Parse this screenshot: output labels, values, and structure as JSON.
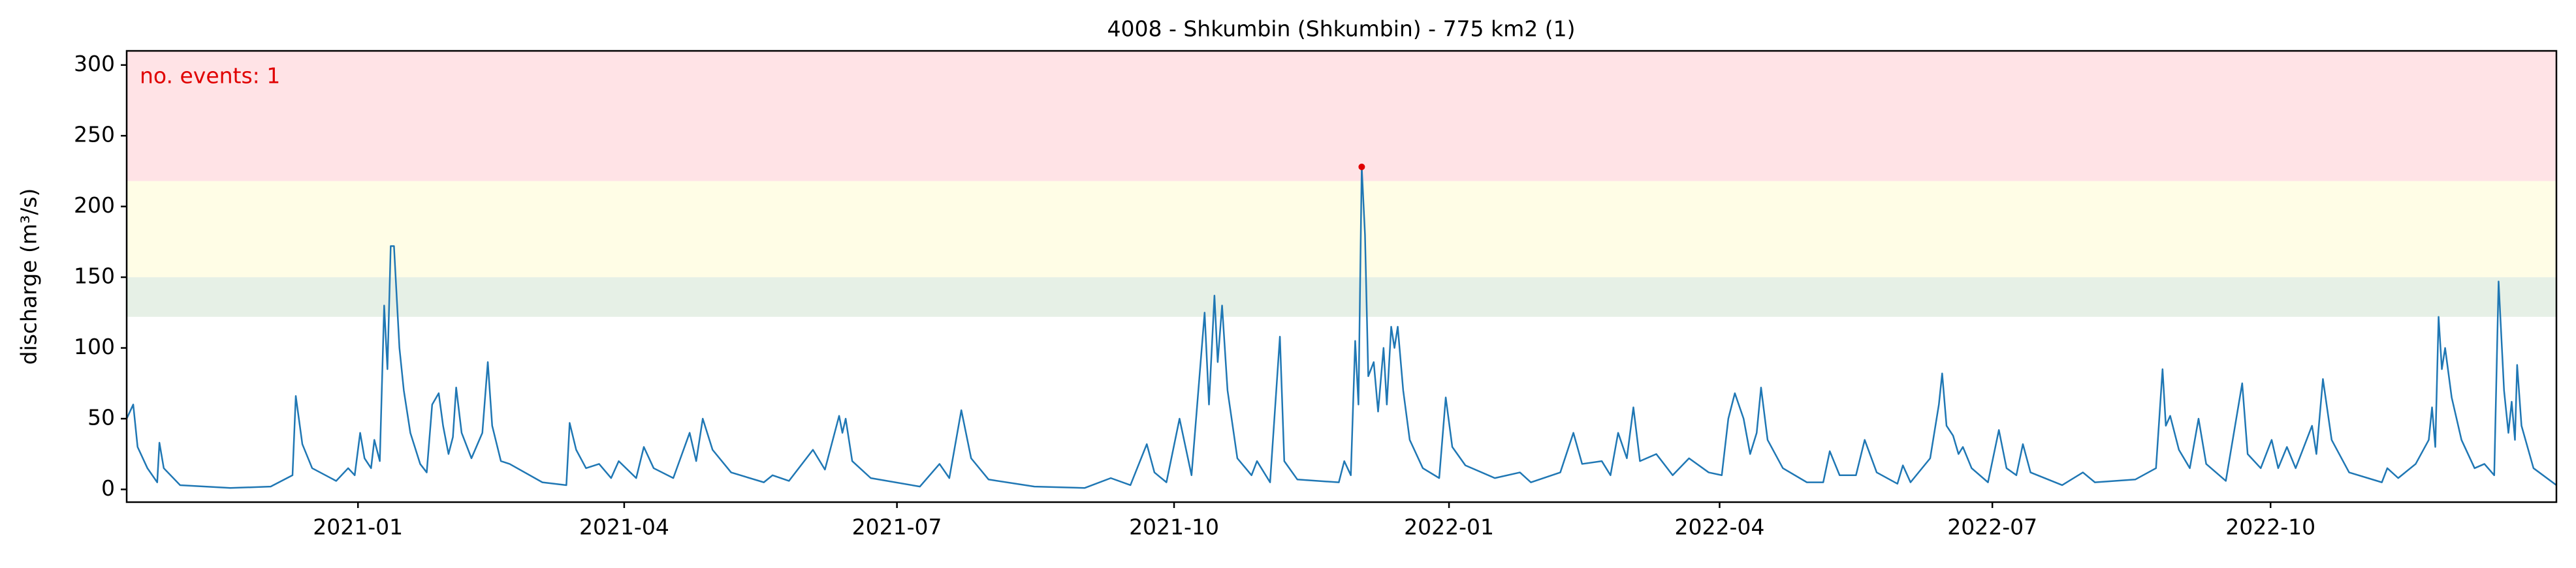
{
  "chart_data": {
    "type": "line",
    "title": "4008 - Shkumbin (Shkumbin) - 775 km2 (1)",
    "y_label": "discharge (m³/s)",
    "annotation": "no. events: 1",
    "annotation_color": "#e00000",
    "color": "#1f77b4",
    "xlim": [
      2020.788,
      2023.015
    ],
    "ylim": [
      -9,
      310
    ],
    "yticks": [
      0,
      50,
      100,
      150,
      200,
      250,
      300
    ],
    "xticks": [
      {
        "value": 2021.0,
        "label": "2021-01"
      },
      {
        "value": 2021.244,
        "label": "2021-04"
      },
      {
        "value": 2021.494,
        "label": "2021-07"
      },
      {
        "value": 2021.748,
        "label": "2021-10"
      },
      {
        "value": 2022.0,
        "label": "2022-01"
      },
      {
        "value": 2022.248,
        "label": "2022-04"
      },
      {
        "value": 2022.498,
        "label": "2022-07"
      },
      {
        "value": 2022.753,
        "label": "2022-10"
      }
    ],
    "bands": [
      {
        "from": 122,
        "color": "#e6f0e6"
      },
      {
        "from": 150,
        "color": "#fffde6"
      },
      {
        "from": 218,
        "color": "#ffe3e6"
      }
    ],
    "events": {
      "x": [
        2021.92
      ],
      "values": [
        228
      ],
      "color": "#e00000"
    },
    "x": [
      2020.788,
      2020.794,
      2020.798,
      2020.807,
      2020.816,
      2020.818,
      2020.822,
      2020.837,
      2020.883,
      2020.92,
      2020.94,
      2020.943,
      2020.949,
      2020.958,
      2020.98,
      2020.991,
      2020.997,
      2021.002,
      2021.006,
      2021.012,
      2021.015,
      2021.02,
      2021.024,
      2021.027,
      2021.03,
      2021.033,
      2021.038,
      2021.042,
      2021.048,
      2021.057,
      2021.063,
      2021.068,
      2021.074,
      2021.078,
      2021.083,
      2021.087,
      2021.09,
      2021.095,
      2021.104,
      2021.114,
      2021.119,
      2021.123,
      2021.131,
      2021.139,
      2021.169,
      2021.191,
      2021.194,
      2021.2,
      2021.209,
      2021.221,
      2021.232,
      2021.239,
      2021.255,
      2021.262,
      2021.271,
      2021.289,
      2021.304,
      2021.31,
      2021.316,
      2021.325,
      2021.342,
      2021.372,
      2021.38,
      2021.395,
      2021.417,
      2021.428,
      2021.441,
      2021.444,
      2021.447,
      2021.453,
      2021.47,
      2021.515,
      2021.533,
      2021.542,
      2021.553,
      2021.562,
      2021.578,
      2021.62,
      2021.666,
      2021.69,
      2021.708,
      2021.723,
      2021.73,
      2021.741,
      2021.753,
      2021.764,
      2021.776,
      2021.78,
      2021.785,
      2021.788,
      2021.792,
      2021.797,
      2021.806,
      2021.819,
      2021.824,
      2021.836,
      2021.845,
      2021.849,
      2021.861,
      2021.899,
      2021.904,
      2021.91,
      2021.914,
      2021.917,
      2021.92,
      2021.923,
      2021.926,
      2021.931,
      2021.935,
      2021.94,
      2021.943,
      2021.947,
      2021.95,
      2021.953,
      2021.958,
      2021.964,
      2021.976,
      2021.991,
      2021.997,
      2022.003,
      2022.015,
      2022.042,
      2022.065,
      2022.075,
      2022.102,
      2022.114,
      2022.122,
      2022.14,
      2022.148,
      2022.155,
      2022.163,
      2022.169,
      2022.175,
      2022.19,
      2022.205,
      2022.22,
      2022.238,
      2022.25,
      2022.256,
      2022.262,
      2022.27,
      2022.276,
      2022.282,
      2022.286,
      2022.292,
      2022.306,
      2022.328,
      2022.343,
      2022.349,
      2022.358,
      2022.373,
      2022.381,
      2022.392,
      2022.411,
      2022.416,
      2022.423,
      2022.441,
      2022.449,
      2022.452,
      2022.456,
      2022.462,
      2022.467,
      2022.471,
      2022.479,
      2022.494,
      2022.504,
      2022.511,
      2022.52,
      2022.526,
      2022.533,
      2022.562,
      2022.581,
      2022.592,
      2022.629,
      2022.648,
      2022.654,
      2022.657,
      2022.661,
      2022.669,
      2022.679,
      2022.687,
      2022.694,
      2022.712,
      2022.727,
      2022.732,
      2022.744,
      2022.754,
      2022.76,
      2022.768,
      2022.776,
      2022.791,
      2022.795,
      2022.801,
      2022.809,
      2022.825,
      2022.855,
      2022.86,
      2022.87,
      2022.886,
      2022.898,
      2022.901,
      2022.904,
      2022.907,
      2022.91,
      2022.913,
      2022.919,
      2022.928,
      2022.94,
      2022.949,
      2022.958,
      2022.962,
      2022.967,
      2022.971,
      2022.974,
      2022.977,
      2022.979,
      2022.983,
      2022.994,
      2023.015
    ],
    "values": [
      50,
      60,
      30,
      15,
      5,
      33,
      15,
      3,
      1,
      2,
      10,
      66,
      32,
      15,
      6,
      15,
      10,
      40,
      22,
      15,
      35,
      20,
      130,
      85,
      172,
      172,
      100,
      70,
      40,
      18,
      12,
      60,
      68,
      45,
      25,
      37,
      72,
      40,
      22,
      40,
      90,
      45,
      20,
      18,
      5,
      3,
      47,
      28,
      15,
      18,
      8,
      20,
      8,
      30,
      15,
      8,
      40,
      20,
      50,
      28,
      12,
      5,
      10,
      6,
      28,
      14,
      52,
      40,
      50,
      20,
      8,
      2,
      18,
      8,
      56,
      22,
      7,
      2,
      1,
      8,
      3,
      32,
      12,
      5,
      50,
      10,
      125,
      60,
      137,
      90,
      130,
      70,
      22,
      10,
      20,
      5,
      108,
      20,
      7,
      5,
      20,
      10,
      105,
      60,
      228,
      180,
      80,
      90,
      55,
      100,
      60,
      115,
      100,
      115,
      70,
      35,
      15,
      8,
      65,
      30,
      17,
      8,
      12,
      5,
      12,
      40,
      18,
      20,
      10,
      40,
      22,
      58,
      20,
      25,
      10,
      22,
      12,
      10,
      50,
      68,
      50,
      25,
      40,
      72,
      35,
      15,
      5,
      5,
      27,
      10,
      10,
      35,
      12,
      4,
      17,
      5,
      22,
      60,
      82,
      45,
      38,
      25,
      30,
      15,
      5,
      42,
      15,
      10,
      32,
      12,
      3,
      12,
      5,
      7,
      15,
      85,
      45,
      52,
      28,
      15,
      50,
      18,
      6,
      75,
      25,
      15,
      35,
      15,
      30,
      15,
      45,
      25,
      78,
      35,
      12,
      5,
      15,
      8,
      18,
      35,
      58,
      30,
      122,
      85,
      100,
      65,
      35,
      15,
      18,
      10,
      147,
      70,
      40,
      62,
      35,
      88,
      45,
      15,
      3
    ]
  }
}
